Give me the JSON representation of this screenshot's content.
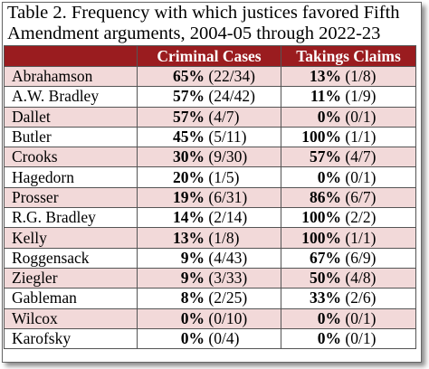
{
  "caption": {
    "line1": "Table 2.  Frequency with which justices favored Fifth",
    "line2": "Amendment arguments, 2004-05 through 2022-23"
  },
  "table": {
    "headers": [
      "",
      "Criminal Cases",
      "Takings Claims"
    ],
    "rows": [
      {
        "name": "Abrahamson",
        "crim_pct": "65%",
        "crim_frac": "(22/34)",
        "tak_pct": "13%",
        "tak_frac": "(1/8)"
      },
      {
        "name": "A.W. Bradley",
        "crim_pct": "57%",
        "crim_frac": "(24/42)",
        "tak_pct": "11%",
        "tak_frac": "(1/9)"
      },
      {
        "name": "Dallet",
        "crim_pct": "57%",
        "crim_frac": "(4/7)",
        "tak_pct": "0%",
        "tak_frac": "(0/1)"
      },
      {
        "name": "Butler",
        "crim_pct": "45%",
        "crim_frac": "(5/11)",
        "tak_pct": "100%",
        "tak_frac": "(1/1)"
      },
      {
        "name": "Crooks",
        "crim_pct": "30%",
        "crim_frac": "(9/30)",
        "tak_pct": "57%",
        "tak_frac": "(4/7)"
      },
      {
        "name": "Hagedorn",
        "crim_pct": "20%",
        "crim_frac": "(1/5)",
        "tak_pct": "0%",
        "tak_frac": "(0/1)"
      },
      {
        "name": "Prosser",
        "crim_pct": "19%",
        "crim_frac": "(6/31)",
        "tak_pct": "86%",
        "tak_frac": "(6/7)"
      },
      {
        "name": "R.G. Bradley",
        "crim_pct": "14%",
        "crim_frac": "(2/14)",
        "tak_pct": "100%",
        "tak_frac": "(2/2)"
      },
      {
        "name": "Kelly",
        "crim_pct": "13%",
        "crim_frac": "(1/8)",
        "tak_pct": "100%",
        "tak_frac": "(1/1)"
      },
      {
        "name": "Roggensack",
        "crim_pct": "9%",
        "crim_frac": "(4/43)",
        "tak_pct": "67%",
        "tak_frac": "(6/9)"
      },
      {
        "name": "Ziegler",
        "crim_pct": "9%",
        "crim_frac": "(3/33)",
        "tak_pct": "50%",
        "tak_frac": "(4/8)"
      },
      {
        "name": "Gableman",
        "crim_pct": "8%",
        "crim_frac": "(2/25)",
        "tak_pct": "33%",
        "tak_frac": "(2/6)"
      },
      {
        "name": "Wilcox",
        "crim_pct": "0%",
        "crim_frac": "(0/10)",
        "tak_pct": "0%",
        "tak_frac": "(0/1)"
      },
      {
        "name": "Karofsky",
        "crim_pct": "0%",
        "crim_frac": "(0/4)",
        "tak_pct": "0%",
        "tak_frac": "(0/1)"
      }
    ]
  },
  "colors": {
    "header": "#9a1c1f",
    "stripe": "#f2d9d9"
  }
}
